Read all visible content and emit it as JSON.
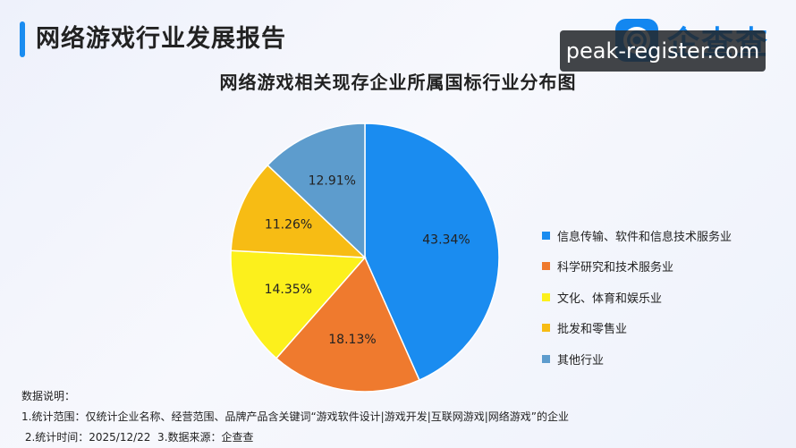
{
  "header": {
    "title": "网络游戏行业发展报告",
    "logo_text": "企查查",
    "watermark": "peak-register.com"
  },
  "chart_data": {
    "type": "pie",
    "title": "网络游戏相关现存企业所属国标行业分布图",
    "slices": [
      {
        "name": "信息传输、软件和信息技术服务业",
        "value": 43.34,
        "label": "43.34%",
        "color": "#1a8cf0"
      },
      {
        "name": "科学研究和技术服务业",
        "value": 18.13,
        "label": "18.13%",
        "color": "#ef7a2e"
      },
      {
        "name": "文化、体育和娱乐业",
        "value": 14.35,
        "label": "14.35%",
        "color": "#fcf01c"
      },
      {
        "name": "批发和零售业",
        "value": 11.26,
        "label": "11.26%",
        "color": "#f7bc14"
      },
      {
        "name": "其他行业",
        "value": 12.91,
        "label": "12.91%",
        "color": "#5d9ccd"
      }
    ],
    "legend_position": "right"
  },
  "notes": {
    "heading": "数据说明：",
    "line1": "1.统计范围：仅统计企业名称、经营范围、品牌产品含关键词“游戏软件设计|游戏开发|互联网游戏|网络游戏”的企业",
    "line2": " 2.统计时间：2025/12/22  3.数据来源：企查查"
  }
}
